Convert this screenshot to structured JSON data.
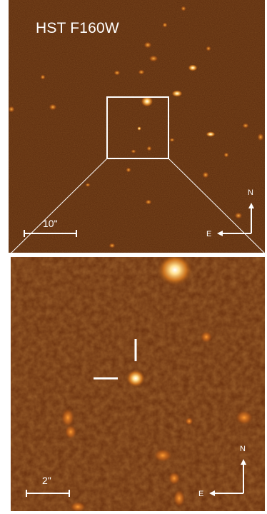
{
  "top_panel": {
    "filter_label": "HST F160W",
    "scale_bar_label": "10\"",
    "compass": {
      "north": "N",
      "east": "E"
    }
  },
  "bottom_panel": {
    "scale_bar_label": "2\"",
    "compass": {
      "north": "N",
      "east": "E"
    }
  },
  "colors": {
    "sky_background": "#5a2a0c",
    "source_glow": "#ffb040",
    "overlay_lines": "#ffffff"
  }
}
